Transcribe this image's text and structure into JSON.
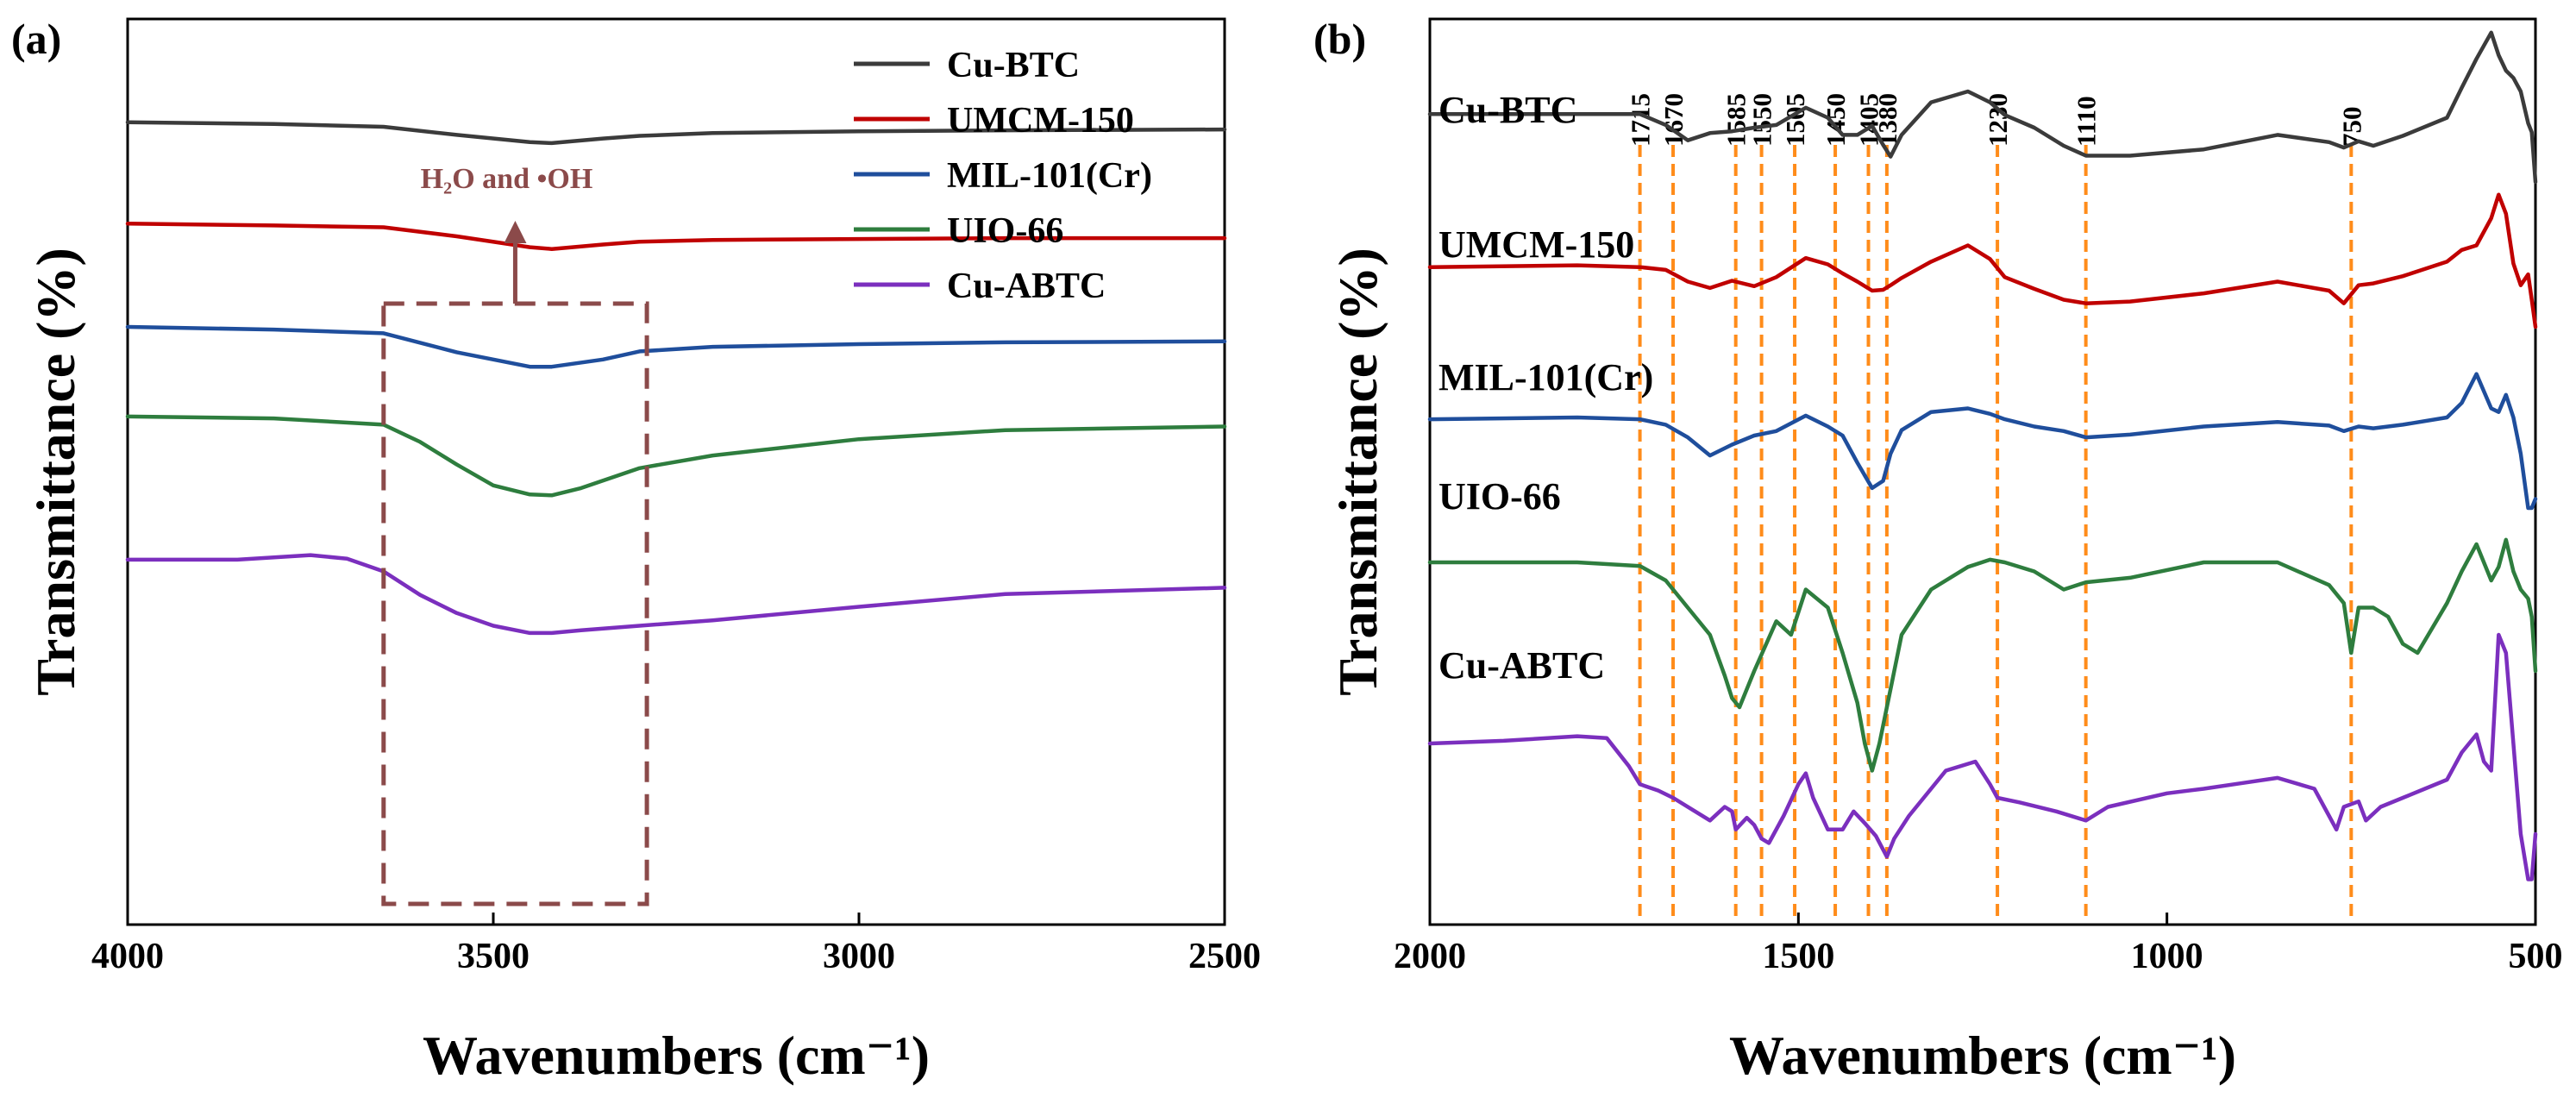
{
  "colors": {
    "Cu-BTC": "#3b3b3b",
    "UMCM-150": "#c00000",
    "MIL-101(Cr)": "#1f4e9c",
    "UIO-66": "#2e7d3e",
    "Cu-ABTC": "#7b2fbe",
    "box": "#8b4a4a",
    "peak_line": "#ff8c1a"
  },
  "chart_data": [
    {
      "type": "line",
      "panel_label": "(a)",
      "title": "",
      "xlabel": "Wavenumbers (cm⁻¹)",
      "ylabel": "Transmittance (%)",
      "xlim": [
        4000,
        2500
      ],
      "x_reversed": true,
      "y_units": "relative transmittance (arbitrary, offset-stacked)",
      "ylim": [
        0,
        100
      ],
      "xticks": [
        "4000",
        "3500",
        "3000",
        "2500"
      ],
      "yticks": [],
      "legend": {
        "position": "top-right",
        "entries": [
          "Cu-BTC",
          "UMCM-150",
          "MIL-101(Cr)",
          "UIO-66",
          "Cu-ABTC"
        ]
      },
      "annotation": {
        "text": "H₂O and •OH",
        "region_x": [
          3650,
          3290
        ]
      },
      "series": [
        {
          "name": "Cu-BTC",
          "x": [
            4000,
            3800,
            3650,
            3550,
            3450,
            3420,
            3350,
            3300,
            3200,
            3000,
            2800,
            2500
          ],
          "y": [
            88.6,
            88.4,
            88.1,
            87.2,
            86.4,
            86.3,
            86.8,
            87.1,
            87.4,
            87.6,
            87.7,
            87.8
          ]
        },
        {
          "name": "UMCM-150",
          "x": [
            4000,
            3800,
            3650,
            3550,
            3450,
            3420,
            3350,
            3300,
            3200,
            3000,
            2800,
            2500
          ],
          "y": [
            77.4,
            77.2,
            77.0,
            76.0,
            74.8,
            74.6,
            75.1,
            75.4,
            75.6,
            75.7,
            75.8,
            75.8
          ]
        },
        {
          "name": "MIL-101(Cr)",
          "x": [
            4000,
            3800,
            3650,
            3550,
            3450,
            3420,
            3350,
            3300,
            3200,
            3000,
            2800,
            2500
          ],
          "y": [
            66.0,
            65.7,
            65.3,
            63.2,
            61.6,
            61.6,
            62.4,
            63.3,
            63.8,
            64.1,
            64.3,
            64.4
          ]
        },
        {
          "name": "UIO-66",
          "x": [
            4000,
            3800,
            3650,
            3600,
            3550,
            3500,
            3450,
            3420,
            3380,
            3300,
            3200,
            3000,
            2800,
            2500
          ],
          "y": [
            56.1,
            55.9,
            55.2,
            53.3,
            50.8,
            48.5,
            47.5,
            47.4,
            48.2,
            50.4,
            51.8,
            53.6,
            54.6,
            55.0
          ]
        },
        {
          "name": "Cu-ABTC",
          "x": [
            4000,
            3850,
            3750,
            3700,
            3650,
            3600,
            3550,
            3500,
            3450,
            3420,
            3380,
            3300,
            3200,
            3000,
            2800,
            2500
          ],
          "y": [
            40.3,
            40.3,
            40.8,
            40.4,
            39.0,
            36.4,
            34.4,
            33.0,
            32.2,
            32.2,
            32.5,
            33.0,
            33.6,
            35.1,
            36.5,
            37.2
          ]
        }
      ]
    },
    {
      "type": "line",
      "panel_label": "(b)",
      "title": "",
      "xlabel": "Wavenumbers (cm⁻¹)",
      "ylabel": "Transmittance (%)",
      "xlim": [
        2000,
        500
      ],
      "x_reversed": true,
      "y_units": "relative transmittance (arbitrary, offset-stacked)",
      "ylim": [
        0,
        100
      ],
      "xticks": [
        "2000",
        "1500",
        "1000",
        "500"
      ],
      "yticks": [],
      "series_labels": [
        "Cu-BTC",
        "UMCM-150",
        "MIL-101(Cr)",
        "UIO-66",
        "Cu-ABTC"
      ],
      "peak_markers": [
        "1715",
        "1670",
        "1585",
        "1550",
        "1505",
        "1450",
        "1405",
        "1380",
        "1230",
        "1110",
        "750"
      ],
      "series": [
        {
          "name": "Cu-BTC",
          "x": [
            2000,
            1800,
            1715,
            1680,
            1650,
            1620,
            1590,
            1560,
            1530,
            1490,
            1460,
            1440,
            1420,
            1400,
            1385,
            1375,
            1360,
            1320,
            1270,
            1240,
            1220,
            1180,
            1140,
            1110,
            1050,
            950,
            850,
            780,
            760,
            740,
            720,
            680,
            620,
            600,
            580,
            560,
            550,
            540,
            530,
            520,
            510,
            505,
            500
          ],
          "y": [
            89.5,
            89.5,
            89.5,
            88.3,
            86.6,
            87.4,
            87.6,
            88.0,
            88.3,
            90.2,
            89.1,
            87.2,
            87.2,
            88.2,
            86.1,
            84.8,
            87.2,
            90.8,
            92.0,
            90.8,
            89.4,
            88.0,
            86.0,
            84.9,
            84.9,
            85.6,
            87.2,
            86.4,
            85.8,
            86.5,
            86.0,
            87.1,
            89.1,
            92.4,
            95.6,
            98.5,
            96.0,
            94.3,
            93.5,
            92.0,
            88.5,
            87.5,
            82.0
          ]
        },
        {
          "name": "UMCM-150",
          "x": [
            2000,
            1800,
            1715,
            1680,
            1650,
            1620,
            1590,
            1560,
            1530,
            1490,
            1460,
            1440,
            1420,
            1400,
            1385,
            1375,
            1360,
            1320,
            1270,
            1240,
            1220,
            1180,
            1140,
            1110,
            1050,
            950,
            850,
            780,
            760,
            740,
            720,
            680,
            620,
            600,
            580,
            560,
            550,
            540,
            530,
            520,
            510,
            505,
            500
          ],
          "y": [
            72.6,
            72.8,
            72.6,
            72.3,
            71.0,
            70.3,
            71.1,
            70.5,
            71.5,
            73.6,
            72.9,
            71.9,
            71.0,
            70.0,
            70.1,
            70.6,
            71.4,
            73.2,
            75.0,
            73.5,
            71.5,
            70.2,
            69.0,
            68.6,
            68.8,
            69.7,
            71.0,
            70.0,
            68.6,
            70.6,
            70.8,
            71.6,
            73.2,
            74.5,
            75.0,
            78.0,
            80.6,
            78.5,
            73.0,
            70.6,
            71.8,
            69.0,
            66.0
          ]
        },
        {
          "name": "MIL-101(Cr)",
          "x": [
            2000,
            1800,
            1715,
            1680,
            1650,
            1620,
            1590,
            1560,
            1530,
            1490,
            1460,
            1440,
            1420,
            1400,
            1385,
            1375,
            1360,
            1320,
            1270,
            1240,
            1220,
            1180,
            1140,
            1110,
            1050,
            950,
            850,
            780,
            760,
            740,
            720,
            680,
            620,
            600,
            580,
            560,
            550,
            540,
            530,
            520,
            510,
            505,
            500
          ],
          "y": [
            55.8,
            56.0,
            55.8,
            55.2,
            53.8,
            51.8,
            53.0,
            54.0,
            54.5,
            56.2,
            55.0,
            54.0,
            51.0,
            48.2,
            49.0,
            52.0,
            54.6,
            56.6,
            57.0,
            56.4,
            55.8,
            55.0,
            54.5,
            53.8,
            54.1,
            55.0,
            55.5,
            55.1,
            54.5,
            55.0,
            54.8,
            55.2,
            56.0,
            57.6,
            60.8,
            57.0,
            56.6,
            58.5,
            56.0,
            52.0,
            46.0,
            46.0,
            47.0
          ]
        },
        {
          "name": "UIO-66",
          "x": [
            2000,
            1800,
            1715,
            1680,
            1650,
            1620,
            1600,
            1590,
            1580,
            1560,
            1530,
            1510,
            1490,
            1460,
            1440,
            1420,
            1410,
            1400,
            1390,
            1375,
            1360,
            1320,
            1270,
            1240,
            1220,
            1180,
            1140,
            1110,
            1050,
            950,
            850,
            780,
            760,
            750,
            740,
            720,
            700,
            680,
            660,
            620,
            600,
            580,
            560,
            550,
            540,
            530,
            520,
            510,
            505,
            500
          ],
          "y": [
            40.0,
            40.0,
            39.6,
            38.0,
            35.0,
            32.0,
            27.5,
            25.0,
            24.0,
            28.0,
            33.5,
            32.0,
            37.0,
            35.0,
            30.0,
            24.5,
            20.0,
            17.0,
            20.0,
            26.0,
            32.0,
            37.0,
            39.5,
            40.3,
            40.0,
            39.0,
            37.0,
            37.8,
            38.3,
            40.0,
            40.0,
            37.5,
            35.5,
            30.0,
            35.0,
            35.0,
            34.0,
            31.0,
            30.0,
            35.5,
            39.0,
            42.0,
            38.0,
            39.5,
            42.5,
            39.0,
            37.0,
            36.0,
            34.0,
            28.0
          ]
        },
        {
          "name": "Cu-ABTC",
          "x": [
            2000,
            1900,
            1800,
            1760,
            1730,
            1715,
            1690,
            1670,
            1640,
            1620,
            1600,
            1590,
            1585,
            1570,
            1560,
            1550,
            1540,
            1520,
            1500,
            1490,
            1480,
            1460,
            1440,
            1425,
            1410,
            1395,
            1380,
            1370,
            1350,
            1300,
            1260,
            1240,
            1230,
            1200,
            1150,
            1110,
            1080,
            1000,
            950,
            900,
            850,
            800,
            780,
            770,
            760,
            740,
            730,
            710,
            680,
            650,
            620,
            600,
            580,
            570,
            560,
            550,
            540,
            530,
            520,
            510,
            505,
            500
          ],
          "y": [
            20.0,
            20.3,
            20.8,
            20.6,
            17.5,
            15.5,
            14.8,
            14.0,
            12.5,
            11.5,
            13.0,
            12.5,
            10.5,
            11.8,
            11.0,
            9.5,
            9.0,
            12.0,
            15.5,
            16.7,
            14.0,
            10.5,
            10.5,
            12.5,
            11.2,
            9.8,
            7.5,
            9.5,
            12.0,
            17.0,
            18.0,
            15.5,
            14.0,
            13.5,
            12.5,
            11.5,
            13.0,
            14.5,
            15.0,
            15.6,
            16.2,
            15.0,
            12.0,
            10.5,
            13.0,
            13.6,
            11.5,
            13.0,
            14.0,
            15.0,
            16.0,
            19.0,
            21.0,
            18.0,
            17.0,
            32.0,
            30.0,
            20.0,
            10.0,
            5.0,
            5.0,
            10.0
          ]
        }
      ]
    }
  ]
}
